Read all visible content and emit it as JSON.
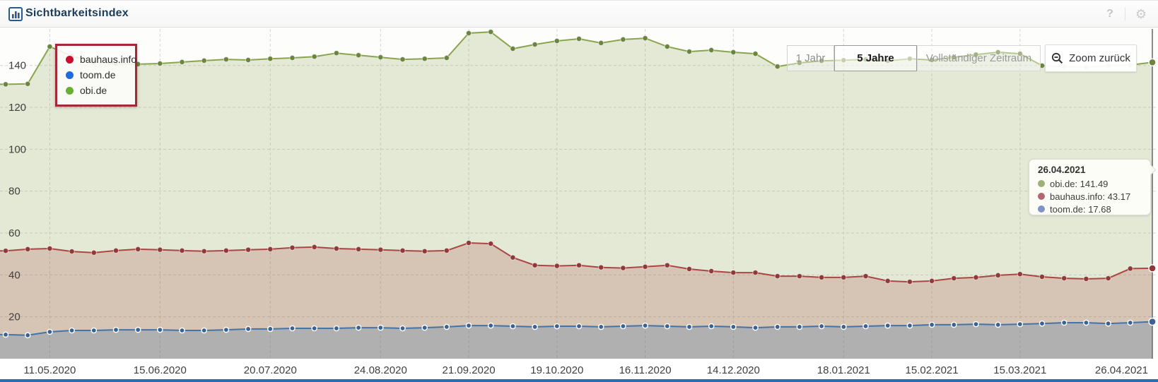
{
  "header": {
    "title": "Sichtbarkeitsindex",
    "help_label": "?",
    "gear_glyph": "⚙"
  },
  "legend": {
    "items": [
      {
        "label": "bauhaus.info",
        "color": "#cb0e2f"
      },
      {
        "label": "toom.de",
        "color": "#1f6be0"
      },
      {
        "label": "obi.de",
        "color": "#67b02f"
      }
    ]
  },
  "range_buttons": [
    {
      "label": "1 Jahr",
      "selected": false
    },
    {
      "label": "5 Jahre",
      "selected": true
    },
    {
      "label": "Vollständiger Zeitraum",
      "selected": false
    }
  ],
  "zoom_button": {
    "label": "Zoom zurück"
  },
  "tooltip": {
    "date": "26.04.2021",
    "rows": [
      {
        "name": "obi.de",
        "value": "141.49",
        "text": "obi.de: 141.49",
        "color": "#9db077"
      },
      {
        "name": "bauhaus.info",
        "value": "43.17",
        "text": "bauhaus.info: 43.17",
        "color": "#b66672"
      },
      {
        "name": "toom.de",
        "value": "17.68",
        "text": "toom.de: 17.68",
        "color": "#7e93c6"
      }
    ]
  },
  "chart_data": {
    "type": "line",
    "title": "Sichtbarkeitsindex",
    "xlabel": "",
    "ylabel": "",
    "ylim": [
      0,
      157.5
    ],
    "yticks": [
      20,
      40,
      60,
      80,
      100,
      120,
      140
    ],
    "grid": true,
    "legend_position": "top-left",
    "x_tick_labels": [
      "11.05.2020",
      "15.06.2020",
      "20.07.2020",
      "24.08.2020",
      "21.09.2020",
      "19.10.2020",
      "16.11.2020",
      "14.12.2020",
      "18.01.2021",
      "15.02.2021",
      "15.03.2021",
      "26.04.2021"
    ],
    "x_tick_indices": [
      2,
      7,
      12,
      17,
      21,
      25,
      29,
      33,
      38,
      42,
      46,
      52
    ],
    "crosshair_index": 52,
    "hover_date": "26.04.2021",
    "series": [
      {
        "name": "obi.de",
        "color": "#89A54E",
        "marker_color": "#6d8440",
        "fill": "rgba(137,165,78,0.22)",
        "values": [
          131.0,
          131.2,
          149.0,
          144.5,
          141.5,
          140.8,
          140.6,
          140.9,
          141.6,
          142.3,
          142.9,
          142.6,
          143.2,
          143.6,
          144.2,
          145.9,
          144.9,
          143.9,
          142.9,
          143.2,
          143.6,
          155.4,
          156.0,
          148.0,
          150.0,
          151.7,
          152.7,
          150.7,
          152.4,
          153.0,
          149.0,
          146.6,
          147.3,
          146.3,
          145.6,
          139.5,
          141.2,
          142.2,
          142.5,
          142.9,
          142.2,
          143.2,
          142.6,
          143.9,
          145.2,
          146.3,
          145.6,
          139.9,
          139.5,
          139.2,
          139.9,
          140.2,
          141.49
        ]
      },
      {
        "name": "bauhaus.info",
        "color": "#AA4643",
        "marker_color": "#8f3a38",
        "fill": "rgba(170,70,67,0.22)",
        "values": [
          51.5,
          52.3,
          52.6,
          51.2,
          50.6,
          51.6,
          52.3,
          52.0,
          51.6,
          51.3,
          51.6,
          52.0,
          52.3,
          53.0,
          53.3,
          52.6,
          52.3,
          52.0,
          51.6,
          51.3,
          51.6,
          55.3,
          54.9,
          48.3,
          44.6,
          44.3,
          44.6,
          43.6,
          43.3,
          43.9,
          44.6,
          42.8,
          41.8,
          41.1,
          41.1,
          39.4,
          39.4,
          38.8,
          38.8,
          39.4,
          37.1,
          36.7,
          37.1,
          38.4,
          38.8,
          39.8,
          40.4,
          39.1,
          38.4,
          38.1,
          38.4,
          43.0,
          43.17
        ]
      },
      {
        "name": "toom.de",
        "color": "#4572A7",
        "marker_color": "#3a6292",
        "fill": "rgba(69,114,167,0.25)",
        "values": [
          11.5,
          11.2,
          12.8,
          13.5,
          13.5,
          13.8,
          13.8,
          13.8,
          13.5,
          13.5,
          13.8,
          14.2,
          14.2,
          14.5,
          14.5,
          14.5,
          14.8,
          14.8,
          14.5,
          14.8,
          15.2,
          15.8,
          15.8,
          15.5,
          15.2,
          15.5,
          15.5,
          15.2,
          15.5,
          15.8,
          15.5,
          15.2,
          15.5,
          15.2,
          14.8,
          15.2,
          15.2,
          15.5,
          15.2,
          15.5,
          15.8,
          15.8,
          16.2,
          16.2,
          16.5,
          16.2,
          16.5,
          16.8,
          17.2,
          17.2,
          16.8,
          17.2,
          17.68
        ]
      }
    ],
    "colors": {
      "bottom_bar": "#2e6db4",
      "grid_line": "#d6d6d6",
      "crosshair": "#666666",
      "plot_bg": "#fdfdfc",
      "axis_text": "#3f3f3f"
    }
  }
}
